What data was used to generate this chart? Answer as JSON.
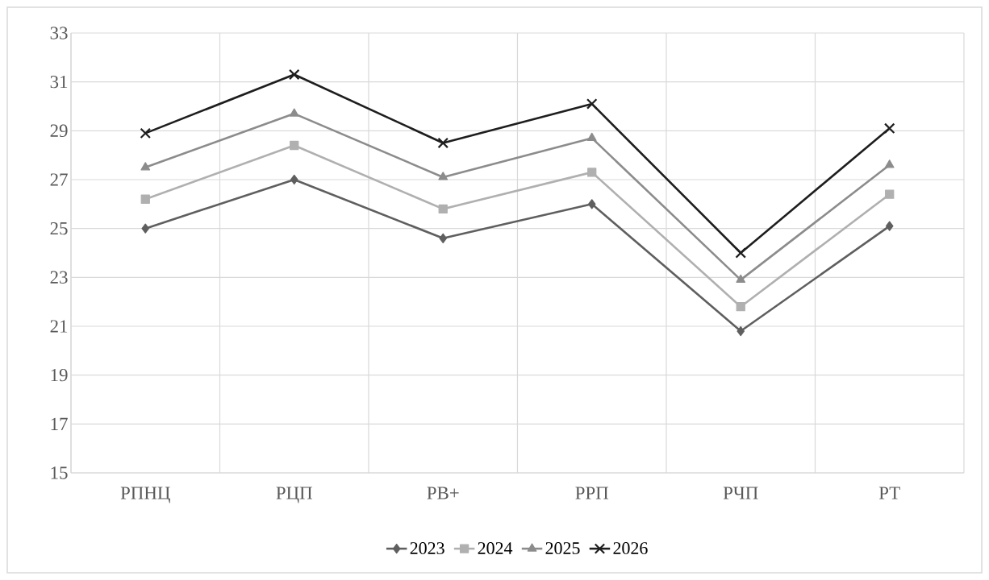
{
  "chart_data": {
    "type": "line",
    "categories": [
      "РПНЦ",
      "РЦП",
      "РВ+",
      "РРП",
      "РЧП",
      "РТ"
    ],
    "series": [
      {
        "name": "2023",
        "color": "#5f5f5f",
        "marker": "diamond",
        "values": [
          25.0,
          27.0,
          24.6,
          26.0,
          20.8,
          25.1
        ]
      },
      {
        "name": "2024",
        "color": "#b0b0b0",
        "marker": "square",
        "values": [
          26.2,
          28.4,
          25.8,
          27.3,
          21.8,
          26.4
        ]
      },
      {
        "name": "2025",
        "color": "#8c8c8c",
        "marker": "triangle",
        "values": [
          27.5,
          29.7,
          27.1,
          28.7,
          22.9,
          27.6
        ]
      },
      {
        "name": "2026",
        "color": "#1e1e1e",
        "marker": "cross",
        "values": [
          28.9,
          31.3,
          28.5,
          30.1,
          24.0,
          29.1
        ]
      }
    ],
    "ylim": [
      15,
      33
    ],
    "yticks": [
      15,
      17,
      19,
      21,
      23,
      25,
      27,
      29,
      31,
      33
    ],
    "grid": true,
    "legend": "bottom",
    "line_style": "solid"
  }
}
